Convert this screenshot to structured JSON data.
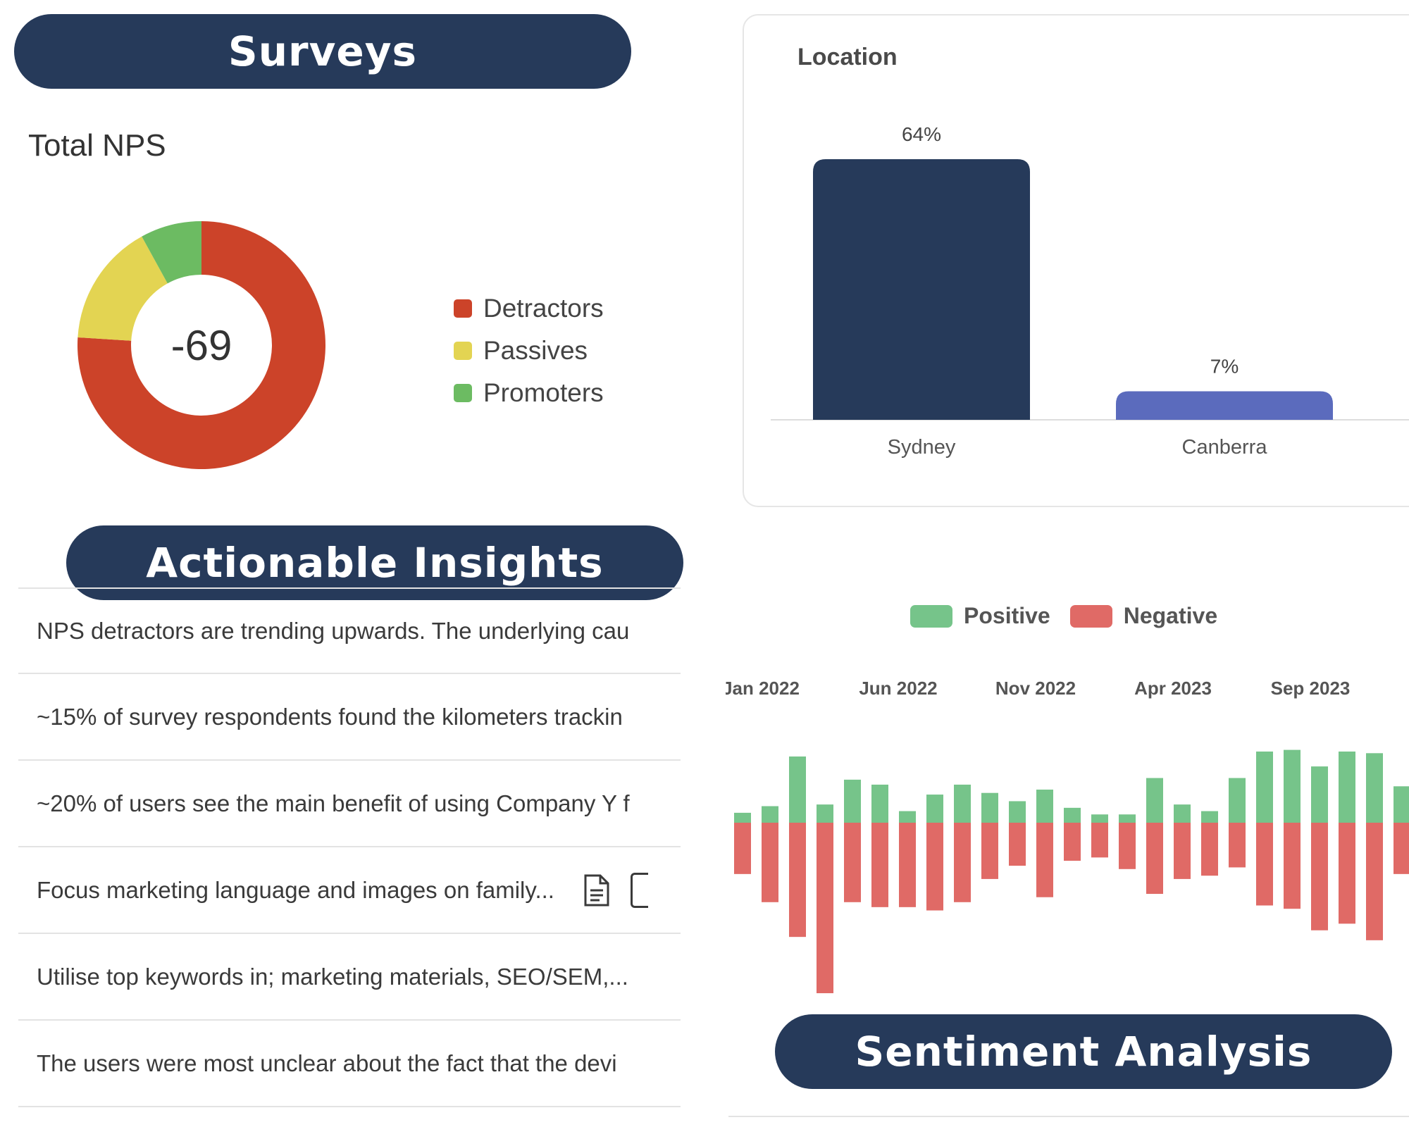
{
  "headers": {
    "surveys": "Surveys",
    "insights": "Actionable Insights",
    "sentiment": "Sentiment Analysis"
  },
  "nps": {
    "title": "Total NPS",
    "value": "-69",
    "segments": [
      {
        "name": "Detractors",
        "percent": 76,
        "color": "#cc4329"
      },
      {
        "name": "Passives",
        "percent": 16,
        "color": "#e3d452"
      },
      {
        "name": "Promoters",
        "percent": 8,
        "color": "#6cbb62"
      }
    ]
  },
  "location": {
    "title": "Location",
    "chart_data": {
      "type": "bar",
      "categories": [
        "Sydney",
        "Canberra"
      ],
      "values": [
        64,
        7
      ],
      "data_labels": [
        "64%",
        "7%"
      ],
      "colors": [
        "#263a5a",
        "#5b6bbd"
      ],
      "ylim": [
        0,
        64
      ],
      "grid": false
    }
  },
  "insights": [
    {
      "text": "NPS detractors are trending upwards. The underlying cau"
    },
    {
      "text": "~15% of survey respondents found the kilometers trackin"
    },
    {
      "text": "~20% of users see the main benefit of using Company Y f"
    },
    {
      "text": "Focus marketing language and images on family...",
      "icon": "document-icon"
    },
    {
      "text": "Utilise top keywords in; marketing materials, SEO/SEM,..."
    },
    {
      "text": "The users were most unclear about the fact that the devi"
    }
  ],
  "sentiment": {
    "legend": [
      {
        "name": "Positive",
        "color": "#76c48a"
      },
      {
        "name": "Negative",
        "color": "#e06a66"
      }
    ],
    "chart_data": {
      "type": "bar",
      "x_tick_labels": [
        "Jan 2022",
        "Jun 2022",
        "Nov 2022",
        "Apr 2023",
        "Sep 2023"
      ],
      "x_tick_indices": [
        0,
        5,
        10,
        15,
        20
      ],
      "series": [
        {
          "name": "Positive",
          "values": [
            6,
            10,
            40,
            11,
            26,
            23,
            7,
            17,
            23,
            18,
            13,
            20,
            9,
            5,
            5,
            27,
            11,
            7,
            27,
            43,
            44,
            34,
            43,
            42,
            22
          ]
        },
        {
          "name": "Negative",
          "values": [
            -31,
            -48,
            -69,
            -103,
            -48,
            -51,
            -51,
            -53,
            -48,
            -34,
            -26,
            -45,
            -23,
            -21,
            -28,
            -43,
            -34,
            -32,
            -27,
            -50,
            -52,
            -65,
            -61,
            -71,
            -31
          ]
        }
      ],
      "ylim": [
        -105,
        45
      ]
    }
  }
}
